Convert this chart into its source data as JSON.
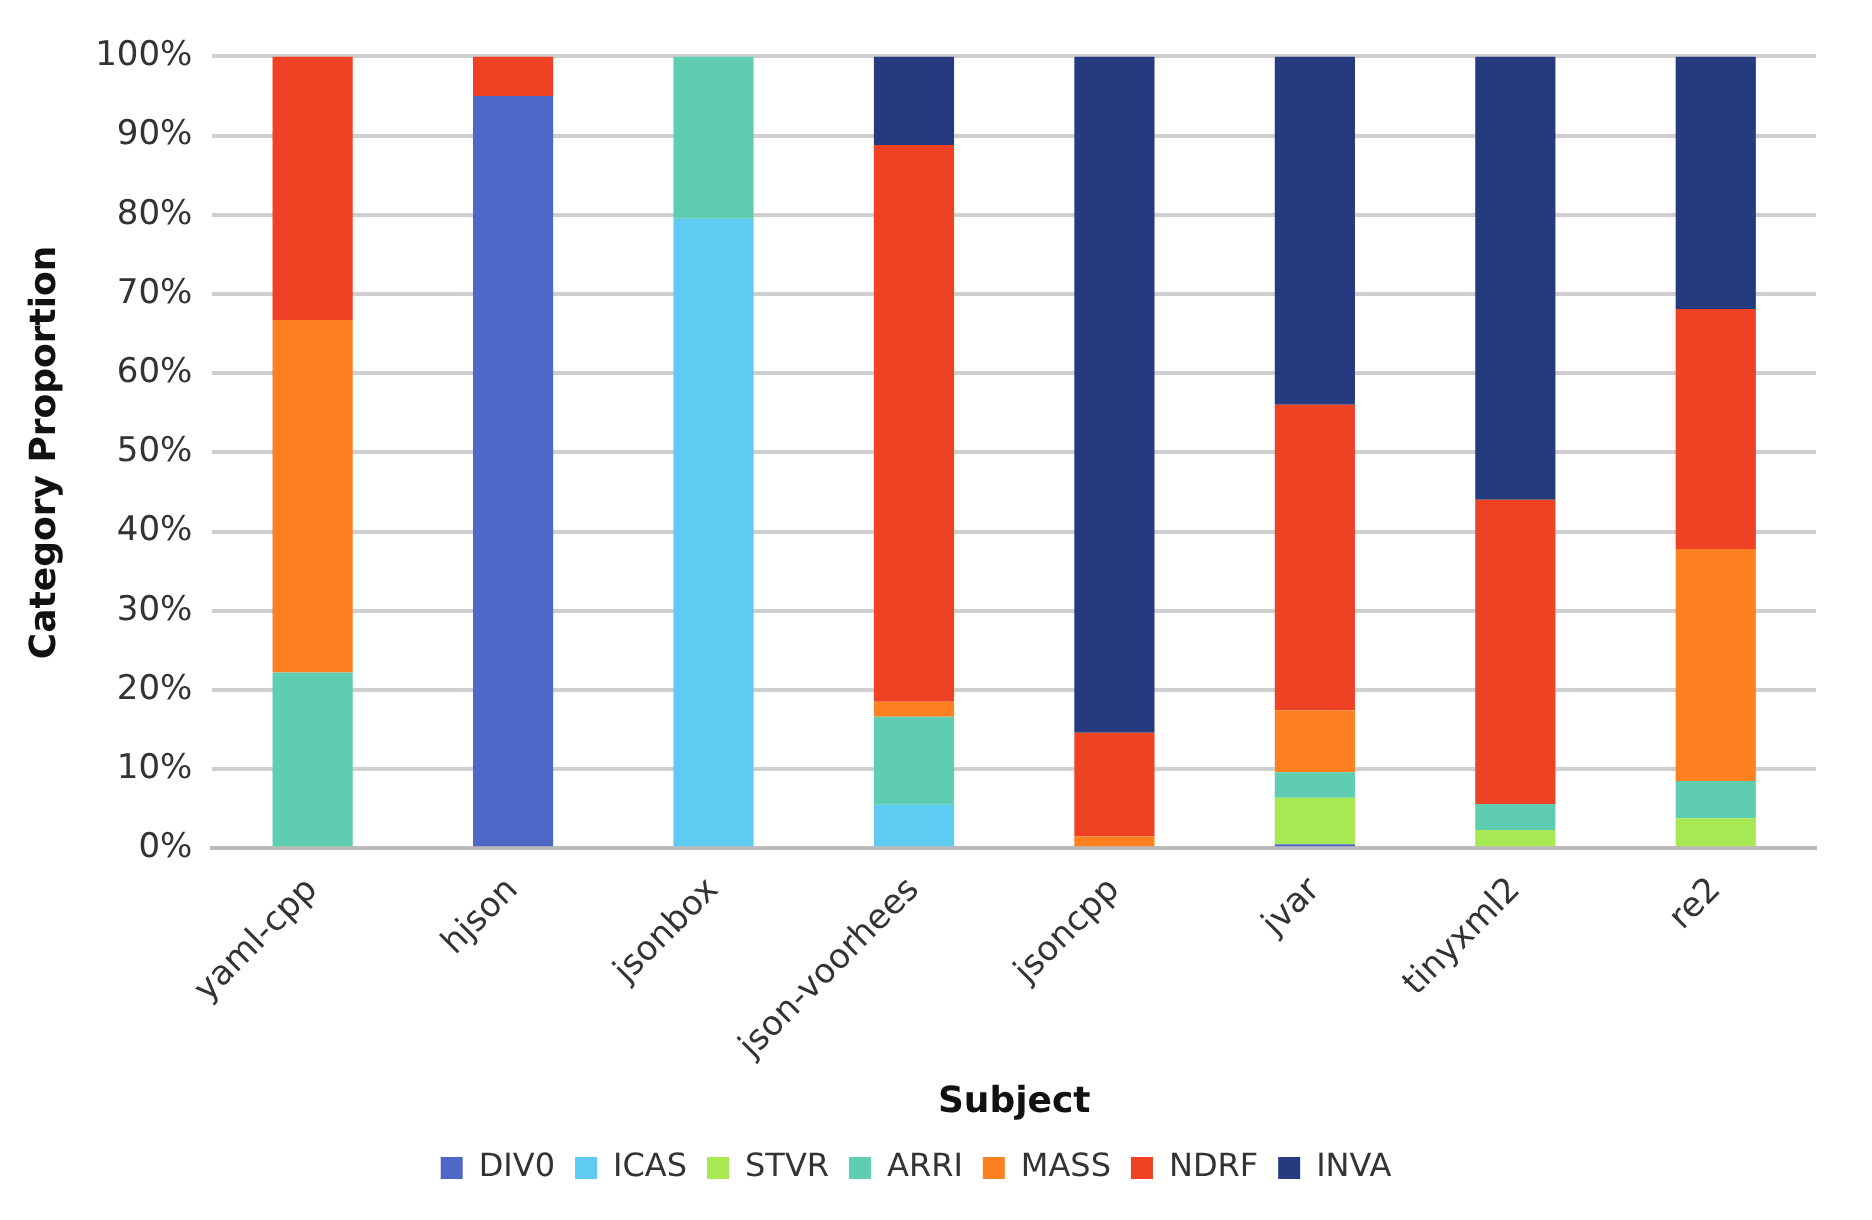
{
  "chart_data": {
    "type": "bar",
    "stacked": true,
    "xlabel": "Subject",
    "ylabel": "Category Proportion",
    "categories": [
      "yaml-cpp",
      "hjson",
      "jsonbox",
      "json-voorhees",
      "jsoncpp",
      "jvar",
      "tinyxml2",
      "re2"
    ],
    "series": [
      {
        "name": "DIV0",
        "color": "#4f67c6",
        "values": [
          0,
          95,
          0,
          0,
          0,
          0.5,
          0,
          0
        ]
      },
      {
        "name": "ICAS",
        "color": "#5ecbf2",
        "values": [
          0,
          0,
          79.5,
          5.5,
          0,
          0,
          0,
          0
        ]
      },
      {
        "name": "STVR",
        "color": "#a8e853",
        "values": [
          0,
          0,
          0,
          0,
          0,
          5.9,
          2.3,
          3.8
        ]
      },
      {
        "name": "ARRI",
        "color": "#5ecdb2",
        "values": [
          22.2,
          0,
          20.5,
          11.1,
          0,
          3.2,
          3.3,
          4.7
        ]
      },
      {
        "name": "MASS",
        "color": "#fd8120",
        "values": [
          44.5,
          0,
          0,
          1.9,
          1.5,
          7.8,
          0,
          29.3
        ]
      },
      {
        "name": "NDRF",
        "color": "#ef4123",
        "values": [
          33.3,
          5,
          0,
          70.3,
          13.1,
          38.6,
          38.4,
          30.3
        ]
      },
      {
        "name": "INVA",
        "color": "#263a80",
        "values": [
          0,
          0,
          0,
          11.2,
          85.4,
          44,
          56,
          31.9
        ]
      }
    ],
    "ylim": [
      0,
      100
    ],
    "yticks": [
      {
        "value": 0,
        "label": "0%"
      },
      {
        "value": 10,
        "label": "10%"
      },
      {
        "value": 20,
        "label": "20%"
      },
      {
        "value": 30,
        "label": "30%"
      },
      {
        "value": 40,
        "label": "40%"
      },
      {
        "value": 50,
        "label": "50%"
      },
      {
        "value": 60,
        "label": "60%"
      },
      {
        "value": 70,
        "label": "70%"
      },
      {
        "value": 80,
        "label": "80%"
      },
      {
        "value": 90,
        "label": "90%"
      },
      {
        "value": 100,
        "label": "100%"
      }
    ],
    "grid": "y",
    "legend": "bottom"
  }
}
